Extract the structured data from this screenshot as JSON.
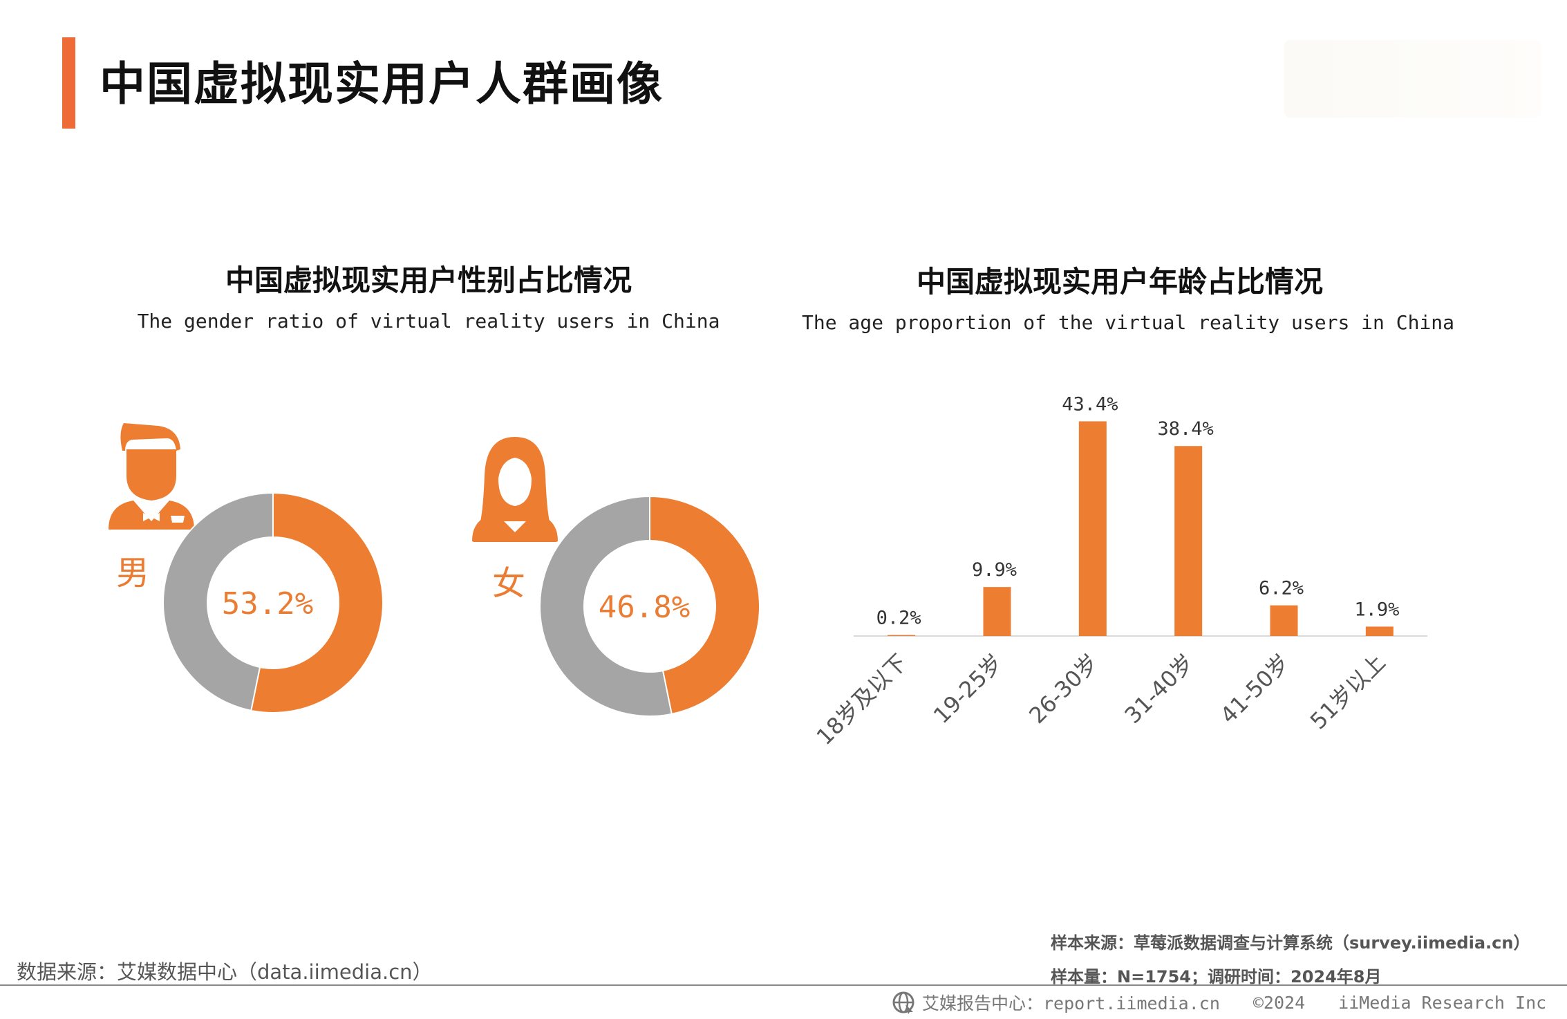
{
  "header": {
    "title": "中国虚拟现实用户人群画像",
    "accent_color": "#ee6a37"
  },
  "colors": {
    "orange": "#ed7d31",
    "gray": "#a5a5a5",
    "axis": "#d9d9d9"
  },
  "icons": [
    "male-user-icon",
    "female-user-icon",
    "globe-icon"
  ],
  "chart_data": [
    {
      "type": "pie",
      "title": "中国虚拟现实用户性别占比情况",
      "subtitle": "The gender ratio of virtual reality users in China",
      "donuts": [
        {
          "label": "男",
          "percent_text": "53.2%",
          "value": 53.2
        },
        {
          "label": "女",
          "percent_text": "46.8%",
          "value": 46.8
        }
      ]
    },
    {
      "type": "bar",
      "title": "中国虚拟现实用户年龄占比情况",
      "subtitle": "The age proportion of the virtual reality users in China",
      "categories": [
        "18岁及以下",
        "19-25岁",
        "26-30岁",
        "31-40岁",
        "41-50岁",
        "51岁以上"
      ],
      "values": [
        0.2,
        9.9,
        43.4,
        38.4,
        6.2,
        1.9
      ],
      "value_labels": [
        "0.2%",
        "9.9%",
        "43.4%",
        "38.4%",
        "6.2%",
        "1.9%"
      ],
      "ylim": [
        0,
        45
      ],
      "grid": false
    }
  ],
  "footer": {
    "data_source": "数据来源：艾媒数据中心（data.iimedia.cn）",
    "sample_source": "样本来源：草莓派数据调查与计算系统（survey.iimedia.cn）",
    "sample_meta": "样本量：N=1754；调研时间：2024年8月",
    "report_site": "艾媒报告中心：report.iimedia.cn",
    "copyright": "©2024",
    "company": "iiMedia Research Inc"
  }
}
